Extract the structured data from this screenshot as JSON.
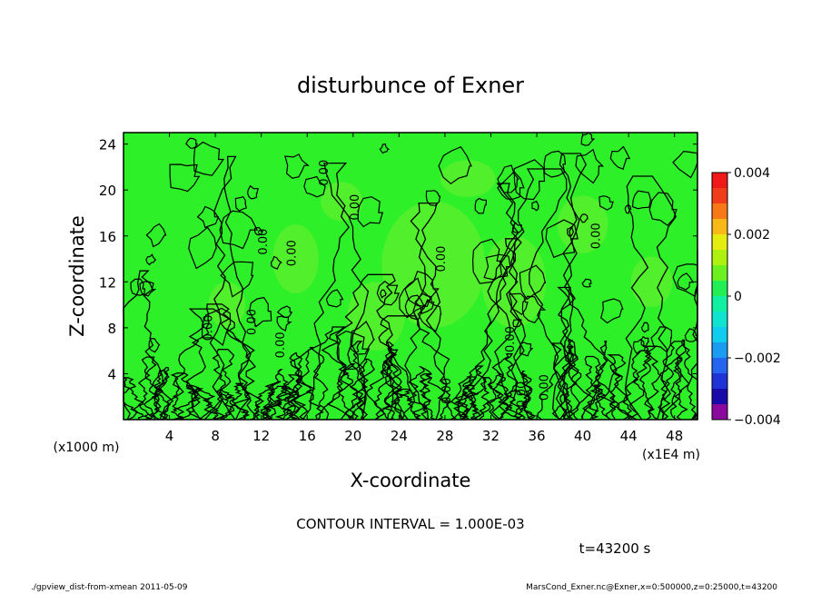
{
  "chart_data": {
    "type": "heatmap",
    "title": "disturbunce of Exner",
    "xlabel": "X-coordinate",
    "ylabel": "Z-coordinate",
    "x_unit_left": "(x1000 m)",
    "x_unit_right": "(x1E4 m)",
    "xlim": [
      0,
      50
    ],
    "ylim": [
      0,
      25
    ],
    "x_ticks": [
      4,
      8,
      12,
      16,
      20,
      24,
      28,
      32,
      36,
      40,
      44,
      48
    ],
    "y_ticks": [
      4,
      8,
      12,
      16,
      20,
      24
    ],
    "colorbar": {
      "min": -0.004,
      "max": 0.004,
      "tick_values": [
        0.004,
        0.002,
        0,
        -0.002,
        -0.004
      ],
      "tick_labels": [
        "0.004",
        "0.002",
        "0",
        "−0.002",
        "−0.004"
      ],
      "levels": [
        {
          "value": -0.004,
          "color": "#8a0a9e"
        },
        {
          "value": -0.0035,
          "color": "#1a0aa8"
        },
        {
          "value": -0.003,
          "color": "#1f33d6"
        },
        {
          "value": -0.0025,
          "color": "#2464ee"
        },
        {
          "value": -0.002,
          "color": "#1c9cf0"
        },
        {
          "value": -0.0015,
          "color": "#10ccee"
        },
        {
          "value": -0.001,
          "color": "#10e4d0"
        },
        {
          "value": -0.0005,
          "color": "#10f0a0"
        },
        {
          "value": 0.0,
          "color": "#22ee55"
        },
        {
          "value": 0.0005,
          "color": "#6cf020"
        },
        {
          "value": 0.001,
          "color": "#aef010"
        },
        {
          "value": 0.0015,
          "color": "#e4ec10"
        },
        {
          "value": 0.002,
          "color": "#f8b818"
        },
        {
          "value": 0.0025,
          "color": "#f87818"
        },
        {
          "value": 0.003,
          "color": "#f03c18"
        },
        {
          "value": 0.0035,
          "color": "#f01818"
        },
        {
          "value": 0.004,
          "color": "#f8a0a0"
        }
      ]
    },
    "field_colors": {
      "background": "#2ef029",
      "light_patch": "#52ef2c",
      "contour_line": "#000000"
    },
    "contour_label": "0.00",
    "contour_interval_label": "CONTOUR INTERVAL = 1.000E-03",
    "time_label": "t=43200 s"
  },
  "footer": {
    "left": "./gpview_dist-from-xmean   2011-05-09",
    "right": "MarsCond_Exner.nc@Exner,x=0:500000,z=0:25000,t=43200"
  }
}
